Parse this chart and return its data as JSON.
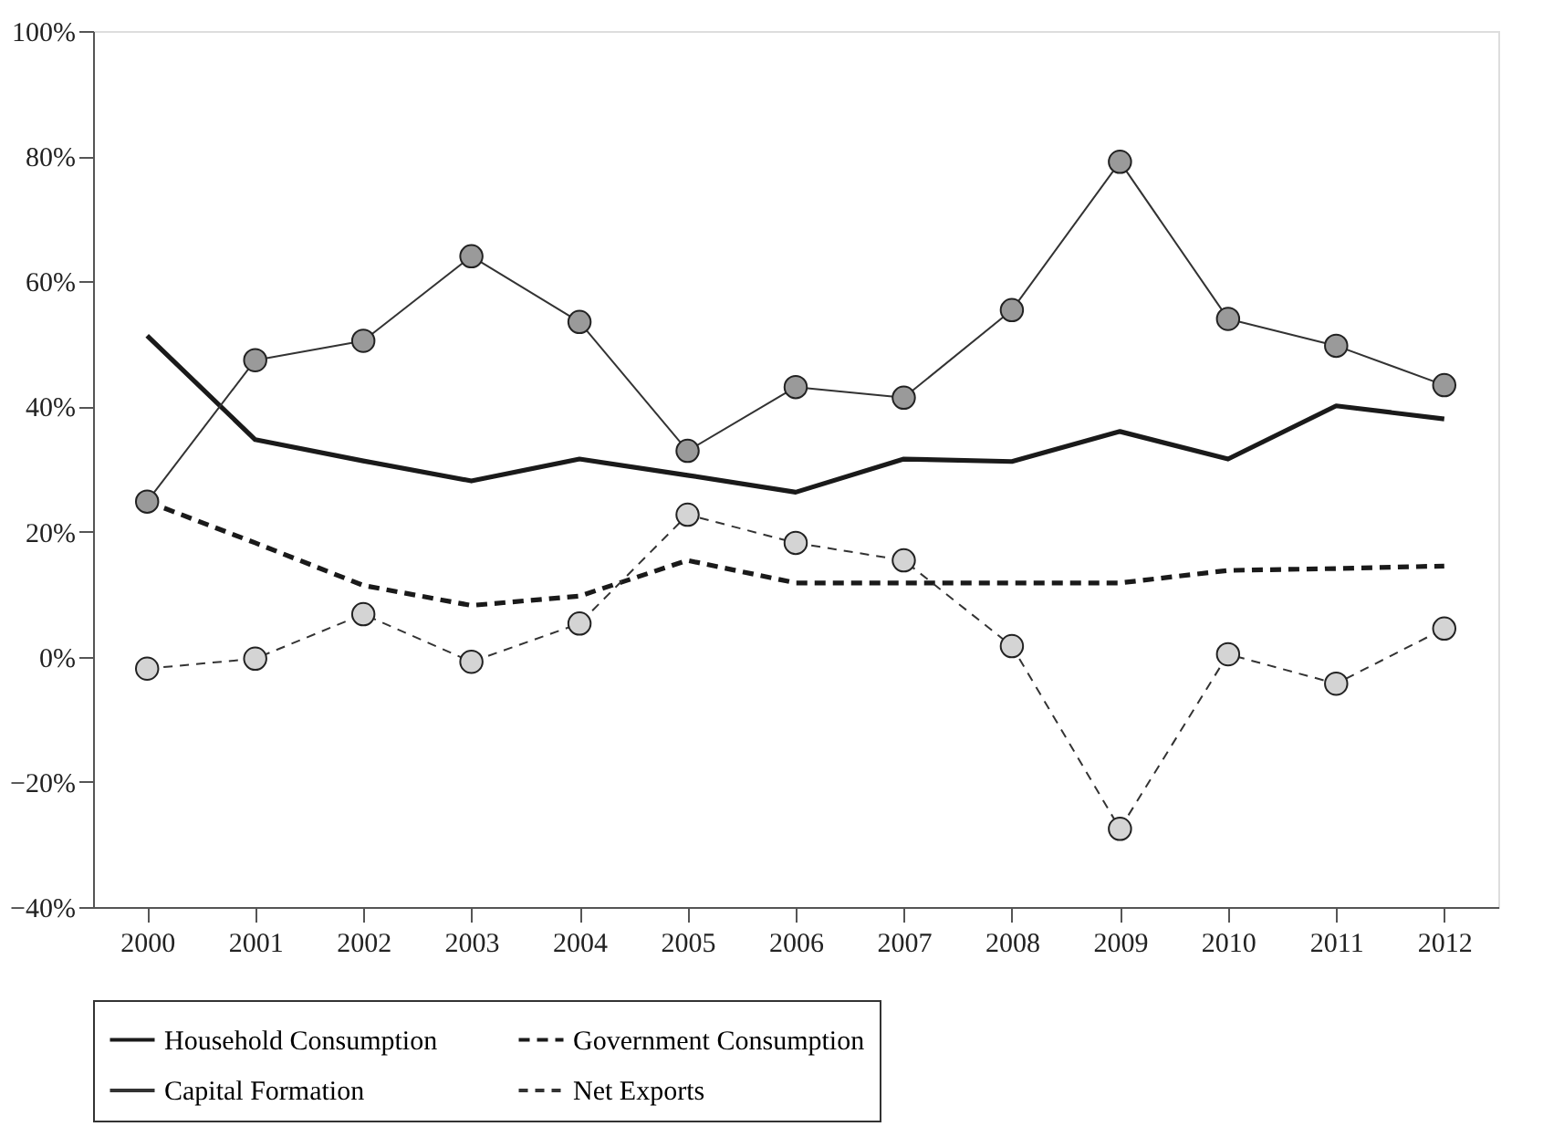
{
  "chart_data": {
    "type": "line",
    "categories": [
      "2000",
      "2001",
      "2002",
      "2003",
      "2004",
      "2005",
      "2006",
      "2007",
      "2008",
      "2009",
      "2010",
      "2011",
      "2012"
    ],
    "ylim": [
      -40,
      100
    ],
    "yticks": [
      {
        "value": -40,
        "label": "−40%"
      },
      {
        "value": -20,
        "label": "−20%"
      },
      {
        "value": 0,
        "label": "0%"
      },
      {
        "value": 20,
        "label": "20%"
      },
      {
        "value": 40,
        "label": "40%"
      },
      {
        "value": 60,
        "label": "60%"
      },
      {
        "value": 80,
        "label": "80%"
      },
      {
        "value": 100,
        "label": "100%"
      }
    ],
    "grid": false,
    "legend": "bottom",
    "series": [
      {
        "name": "Household Consumption",
        "color": "#1a1a1a",
        "marker": "none",
        "line_style": "solid",
        "values": [
          51.3,
          34.7,
          31.3,
          28.1,
          31.6,
          29.0,
          26.3,
          31.6,
          31.2,
          36.0,
          31.6,
          40.1,
          38.0
        ]
      },
      {
        "name": "Government Consumption",
        "color": "#1a1a1a",
        "marker": "none",
        "line_style": "dashed",
        "values": [
          24.8,
          18.2,
          11.4,
          8.2,
          9.7,
          15.4,
          11.8,
          11.8,
          11.8,
          11.8,
          13.8,
          14.1,
          14.5
        ]
      },
      {
        "name": "Capital Formation",
        "color": "#9a9a9a",
        "marker": "circle",
        "line_style": "solid",
        "values": [
          24.8,
          47.4,
          50.5,
          64.0,
          53.5,
          32.9,
          43.1,
          41.4,
          55.4,
          79.1,
          54.0,
          49.7,
          43.4
        ]
      },
      {
        "name": "Net Exports",
        "color": "#d4d4d4",
        "marker": "circle",
        "line_style": "dashed",
        "values": [
          -1.9,
          -0.3,
          6.8,
          -0.8,
          5.3,
          22.7,
          18.2,
          15.4,
          1.7,
          -27.5,
          0.4,
          -4.3,
          4.5
        ]
      }
    ]
  }
}
